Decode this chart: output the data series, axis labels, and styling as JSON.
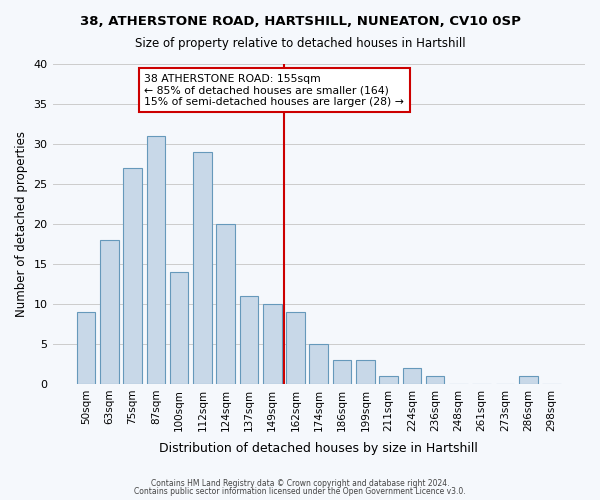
{
  "title1": "38, ATHERSTONE ROAD, HARTSHILL, NUNEATON, CV10 0SP",
  "title2": "Size of property relative to detached houses in Hartshill",
  "xlabel": "Distribution of detached houses by size in Hartshill",
  "ylabel": "Number of detached properties",
  "bins": [
    "50sqm",
    "63sqm",
    "75sqm",
    "87sqm",
    "100sqm",
    "112sqm",
    "124sqm",
    "137sqm",
    "149sqm",
    "162sqm",
    "174sqm",
    "186sqm",
    "199sqm",
    "211sqm",
    "224sqm",
    "236sqm",
    "248sqm",
    "261sqm",
    "273sqm",
    "286sqm",
    "298sqm"
  ],
  "values": [
    9,
    18,
    27,
    31,
    14,
    29,
    20,
    11,
    10,
    9,
    5,
    3,
    3,
    1,
    2,
    1,
    0,
    0,
    0,
    1,
    0
  ],
  "bar_color": "#c8d8e8",
  "bar_edge_color": "#6699bb",
  "vline_index": 8.5,
  "vline_color": "#cc0000",
  "annotation_line1": "38 ATHERSTONE ROAD: 155sqm",
  "annotation_line2": "← 85% of detached houses are smaller (164)",
  "annotation_line3": "15% of semi-detached houses are larger (28) →",
  "annotation_box_color": "#ffffff",
  "annotation_box_edge": "#cc0000",
  "ylim": [
    0,
    40
  ],
  "yticks": [
    0,
    5,
    10,
    15,
    20,
    25,
    30,
    35,
    40
  ],
  "footer1": "Contains HM Land Registry data © Crown copyright and database right 2024.",
  "footer2": "Contains public sector information licensed under the Open Government Licence v3.0.",
  "bg_color": "#f5f8fc",
  "grid_color": "#cccccc"
}
